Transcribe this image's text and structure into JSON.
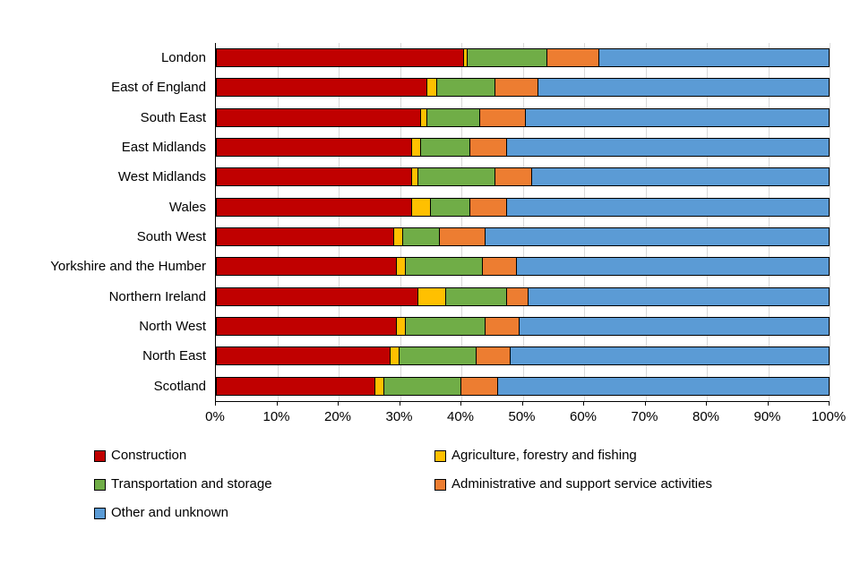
{
  "chart_data": {
    "type": "bar",
    "orientation": "horizontal",
    "stacked": true,
    "title": "",
    "xlabel": "",
    "ylabel": "",
    "xlim": [
      0,
      100
    ],
    "grid": true,
    "legend_position": "bottom",
    "x_ticks": [
      "0%",
      "10%",
      "20%",
      "30%",
      "40%",
      "50%",
      "60%",
      "70%",
      "80%",
      "90%",
      "100%"
    ],
    "categories": [
      "London",
      "East of England",
      "South East",
      "East Midlands",
      "West Midlands",
      "Wales",
      "South West",
      "Yorkshire and the Humber",
      "Northern Ireland",
      "North West",
      "North East",
      "Scotland"
    ],
    "series": [
      {
        "name": "Construction",
        "color": "#c00000",
        "values": [
          40.5,
          34.5,
          33.5,
          32,
          32,
          32,
          29,
          29.5,
          33,
          29.5,
          28.5,
          26
        ]
      },
      {
        "name": "Agriculture, forestry and fishing",
        "color": "#ffc000",
        "values": [
          0.5,
          1.5,
          1,
          1.5,
          1,
          3,
          1.5,
          1.5,
          4.5,
          1.5,
          1.5,
          1.5
        ]
      },
      {
        "name": "Transportation and storage",
        "color": "#70ad47",
        "values": [
          13,
          9.5,
          8.5,
          8,
          12.5,
          6.5,
          6,
          12.5,
          10,
          13,
          12.5,
          12.5
        ]
      },
      {
        "name": "Administrative and support service activities",
        "color": "#ed7d31",
        "values": [
          8.5,
          7,
          7.5,
          6,
          6,
          6,
          7.5,
          5.5,
          3.5,
          5.5,
          5.5,
          6
        ]
      },
      {
        "name": "Other and unknown",
        "color": "#5b9bd5",
        "values": [
          37.5,
          47.5,
          49.5,
          52.5,
          48.5,
          52.5,
          56,
          51,
          49,
          50.5,
          52,
          54
        ]
      }
    ]
  }
}
